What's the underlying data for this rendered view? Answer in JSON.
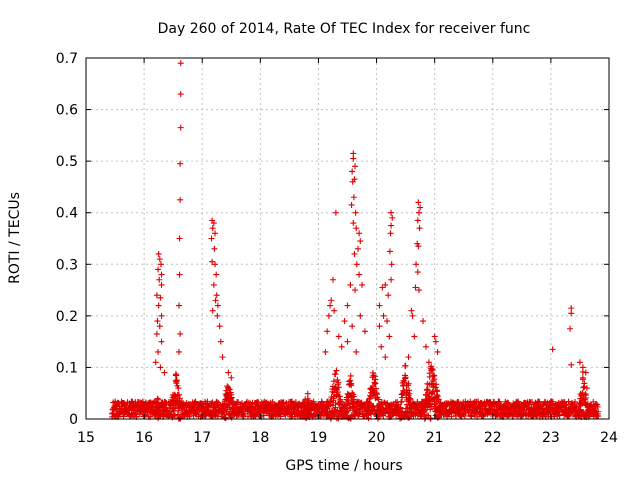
{
  "chart_data": {
    "type": "scatter",
    "title": "Day 260 of 2014, Rate Of TEC Index for receiver func",
    "xlabel": "GPS time / hours",
    "ylabel": "ROTI / TECUs",
    "xlim": [
      15,
      24
    ],
    "ylim": [
      0,
      0.7
    ],
    "x_ticks": [
      "15",
      "16",
      "17",
      "18",
      "19",
      "20",
      "21",
      "22",
      "23",
      "24"
    ],
    "y_ticks": [
      "0",
      "0.1",
      "0.2",
      "0.3",
      "0.4",
      "0.5",
      "0.6",
      "0.7"
    ],
    "grid": true,
    "marker": "plus",
    "color": "#e00000",
    "series": [
      {
        "points": [
          [
            16.63,
            0.69
          ],
          [
            16.63,
            0.63
          ],
          [
            16.63,
            0.565
          ],
          [
            16.62,
            0.495
          ],
          [
            16.62,
            0.425
          ],
          [
            16.61,
            0.35
          ],
          [
            16.61,
            0.28
          ],
          [
            16.6,
            0.22
          ],
          [
            16.62,
            0.165
          ],
          [
            16.6,
            0.13
          ],
          [
            16.25,
            0.32
          ],
          [
            16.27,
            0.31
          ],
          [
            16.29,
            0.3
          ],
          [
            16.24,
            0.29
          ],
          [
            16.3,
            0.28
          ],
          [
            16.26,
            0.27
          ],
          [
            16.3,
            0.26
          ],
          [
            16.22,
            0.24
          ],
          [
            16.28,
            0.235
          ],
          [
            16.25,
            0.22
          ],
          [
            16.3,
            0.2
          ],
          [
            16.23,
            0.19
          ],
          [
            16.27,
            0.18
          ],
          [
            16.22,
            0.165
          ],
          [
            16.3,
            0.15
          ],
          [
            16.24,
            0.13
          ],
          [
            16.2,
            0.11
          ],
          [
            16.28,
            0.1
          ],
          [
            16.35,
            0.09
          ],
          [
            17.17,
            0.385
          ],
          [
            17.2,
            0.38
          ],
          [
            17.18,
            0.37
          ],
          [
            17.22,
            0.36
          ],
          [
            17.16,
            0.35
          ],
          [
            17.21,
            0.33
          ],
          [
            17.17,
            0.305
          ],
          [
            17.22,
            0.3
          ],
          [
            17.24,
            0.28
          ],
          [
            17.2,
            0.26
          ],
          [
            17.25,
            0.24
          ],
          [
            17.23,
            0.23
          ],
          [
            17.27,
            0.22
          ],
          [
            17.18,
            0.21
          ],
          [
            17.26,
            0.2
          ],
          [
            17.3,
            0.18
          ],
          [
            17.32,
            0.15
          ],
          [
            17.35,
            0.12
          ],
          [
            17.45,
            0.09
          ],
          [
            17.5,
            0.08
          ],
          [
            19.3,
            0.4
          ],
          [
            19.25,
            0.27
          ],
          [
            19.22,
            0.23
          ],
          [
            19.2,
            0.22
          ],
          [
            19.18,
            0.2
          ],
          [
            19.27,
            0.21
          ],
          [
            19.15,
            0.17
          ],
          [
            19.35,
            0.16
          ],
          [
            19.12,
            0.13
          ],
          [
            19.4,
            0.14
          ],
          [
            19.6,
            0.515
          ],
          [
            19.6,
            0.505
          ],
          [
            19.63,
            0.49
          ],
          [
            19.58,
            0.48
          ],
          [
            19.62,
            0.465
          ],
          [
            19.59,
            0.46
          ],
          [
            19.61,
            0.43
          ],
          [
            19.57,
            0.415
          ],
          [
            19.64,
            0.4
          ],
          [
            19.6,
            0.38
          ],
          [
            19.65,
            0.37
          ],
          [
            19.7,
            0.36
          ],
          [
            19.72,
            0.345
          ],
          [
            19.68,
            0.33
          ],
          [
            19.62,
            0.32
          ],
          [
            19.66,
            0.3
          ],
          [
            19.7,
            0.28
          ],
          [
            19.55,
            0.26
          ],
          [
            19.63,
            0.25
          ],
          [
            19.75,
            0.26
          ],
          [
            19.5,
            0.22
          ],
          [
            19.72,
            0.2
          ],
          [
            19.45,
            0.19
          ],
          [
            19.58,
            0.18
          ],
          [
            19.8,
            0.17
          ],
          [
            19.5,
            0.15
          ],
          [
            19.65,
            0.13
          ],
          [
            20.25,
            0.4
          ],
          [
            20.27,
            0.39
          ],
          [
            20.25,
            0.375
          ],
          [
            20.24,
            0.36
          ],
          [
            20.23,
            0.325
          ],
          [
            20.26,
            0.3
          ],
          [
            20.25,
            0.27
          ],
          [
            20.15,
            0.26
          ],
          [
            20.1,
            0.255
          ],
          [
            20.2,
            0.24
          ],
          [
            20.05,
            0.22
          ],
          [
            20.12,
            0.2
          ],
          [
            20.18,
            0.19
          ],
          [
            20.05,
            0.18
          ],
          [
            20.22,
            0.16
          ],
          [
            20.08,
            0.14
          ],
          [
            20.15,
            0.12
          ],
          [
            20.72,
            0.42
          ],
          [
            20.75,
            0.41
          ],
          [
            20.73,
            0.4
          ],
          [
            20.71,
            0.385
          ],
          [
            20.74,
            0.37
          ],
          [
            20.7,
            0.34
          ],
          [
            20.72,
            0.335
          ],
          [
            20.68,
            0.3
          ],
          [
            20.71,
            0.285
          ],
          [
            20.67,
            0.255
          ],
          [
            20.73,
            0.25
          ],
          [
            20.6,
            0.21
          ],
          [
            20.62,
            0.2
          ],
          [
            20.8,
            0.19
          ],
          [
            20.65,
            0.16
          ],
          [
            20.85,
            0.14
          ],
          [
            20.55,
            0.12
          ],
          [
            20.9,
            0.11
          ],
          [
            21.0,
            0.16
          ],
          [
            21.02,
            0.15
          ],
          [
            21.05,
            0.13
          ],
          [
            23.35,
            0.215
          ],
          [
            23.35,
            0.205
          ],
          [
            23.33,
            0.175
          ],
          [
            23.03,
            0.135
          ],
          [
            23.35,
            0.105
          ],
          [
            23.5,
            0.11
          ],
          [
            23.55,
            0.1
          ],
          [
            23.6,
            0.09
          ],
          [
            23.62,
            0.06
          ]
        ]
      }
    ]
  }
}
